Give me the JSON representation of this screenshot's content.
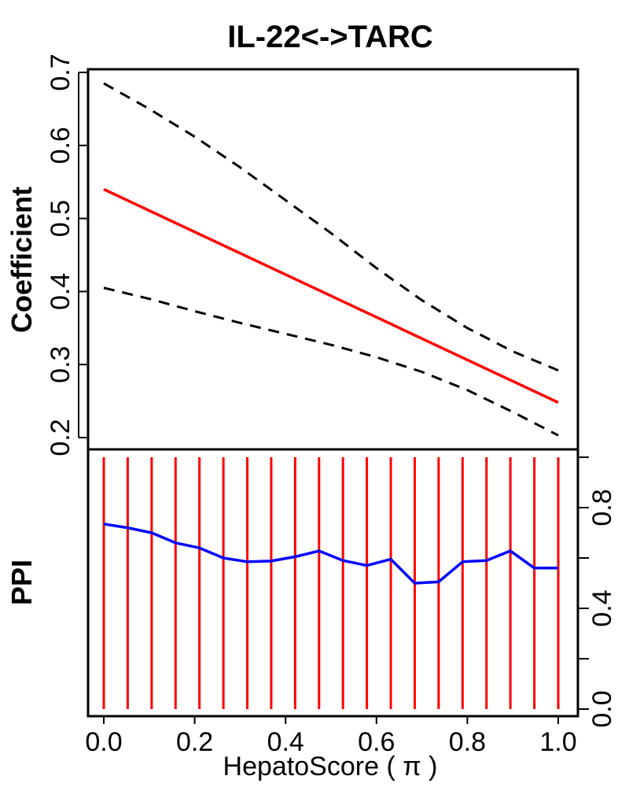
{
  "chart_data": {
    "title": "IL-22<->TARC",
    "xlabel": "HepatoScore ( π )",
    "panels": [
      {
        "type": "line",
        "ylabel": "Coefficient",
        "xlim": [
          0.0,
          1.0
        ],
        "ylim": [
          0.2,
          0.7
        ],
        "x_ticks": [
          0.0,
          0.2,
          0.4,
          0.6,
          0.8,
          1.0
        ],
        "x_tick_labels": [
          "0.0",
          "0.2",
          "0.4",
          "0.6",
          "0.8",
          "1.0"
        ],
        "y_ticks": [
          0.2,
          0.3,
          0.4,
          0.5,
          0.6,
          0.7
        ],
        "y_tick_labels": [
          "0.2",
          "0.3",
          "0.4",
          "0.5",
          "0.6",
          "0.7"
        ],
        "y_axis_side": "left",
        "grid": false,
        "series": [
          {
            "role": "estimate",
            "style": "solid",
            "color": "#ff0000",
            "x": [
              0.0,
              1.0
            ],
            "y": [
              0.54,
              0.248
            ]
          },
          {
            "role": "upper-band",
            "style": "dashed",
            "color": "#000000",
            "x": [
              0.0,
              0.1,
              0.2,
              0.3,
              0.4,
              0.5,
              0.6,
              0.7,
              0.8,
              0.9,
              1.0
            ],
            "y": [
              0.685,
              0.65,
              0.612,
              0.57,
              0.525,
              0.48,
              0.432,
              0.388,
              0.35,
              0.318,
              0.292
            ]
          },
          {
            "role": "lower-band",
            "style": "dashed",
            "color": "#000000",
            "x": [
              0.0,
              0.1,
              0.2,
              0.3,
              0.4,
              0.5,
              0.6,
              0.7,
              0.8,
              0.9,
              1.0
            ],
            "y": [
              0.405,
              0.39,
              0.373,
              0.357,
              0.342,
              0.327,
              0.31,
              0.29,
              0.265,
              0.235,
              0.203
            ]
          }
        ]
      },
      {
        "type": "line",
        "ylabel": "PPI",
        "xlim": [
          0.0,
          1.0
        ],
        "ylim": [
          0.0,
          1.0
        ],
        "y_ticks": [
          0.0,
          0.4,
          0.8
        ],
        "y_tick_labels": [
          "0.0",
          "0.4",
          "0.8"
        ],
        "y_axis_side": "right",
        "grid": false,
        "vertical_lines": {
          "color": "#ff0000",
          "x": [
            0.0,
            0.0526,
            0.1053,
            0.1579,
            0.2105,
            0.2632,
            0.3158,
            0.3684,
            0.4211,
            0.4737,
            0.5263,
            0.5789,
            0.6316,
            0.6842,
            0.7368,
            0.7895,
            0.8421,
            0.8947,
            0.9474,
            1.0
          ],
          "y_from": 0.0,
          "y_to": 1.0
        },
        "series": [
          {
            "role": "ppi",
            "style": "solid",
            "color": "#0000ff",
            "x": [
              0.0,
              0.0526,
              0.1053,
              0.1579,
              0.2105,
              0.2632,
              0.3158,
              0.3684,
              0.4211,
              0.4737,
              0.5263,
              0.5789,
              0.6316,
              0.6842,
              0.7368,
              0.7895,
              0.8421,
              0.8947,
              0.9474,
              1.0
            ],
            "y": [
              0.735,
              0.72,
              0.7,
              0.66,
              0.64,
              0.6,
              0.585,
              0.588,
              0.605,
              0.628,
              0.59,
              0.57,
              0.595,
              0.5,
              0.505,
              0.585,
              0.59,
              0.628,
              0.56,
              0.56
            ]
          }
        ]
      }
    ]
  }
}
